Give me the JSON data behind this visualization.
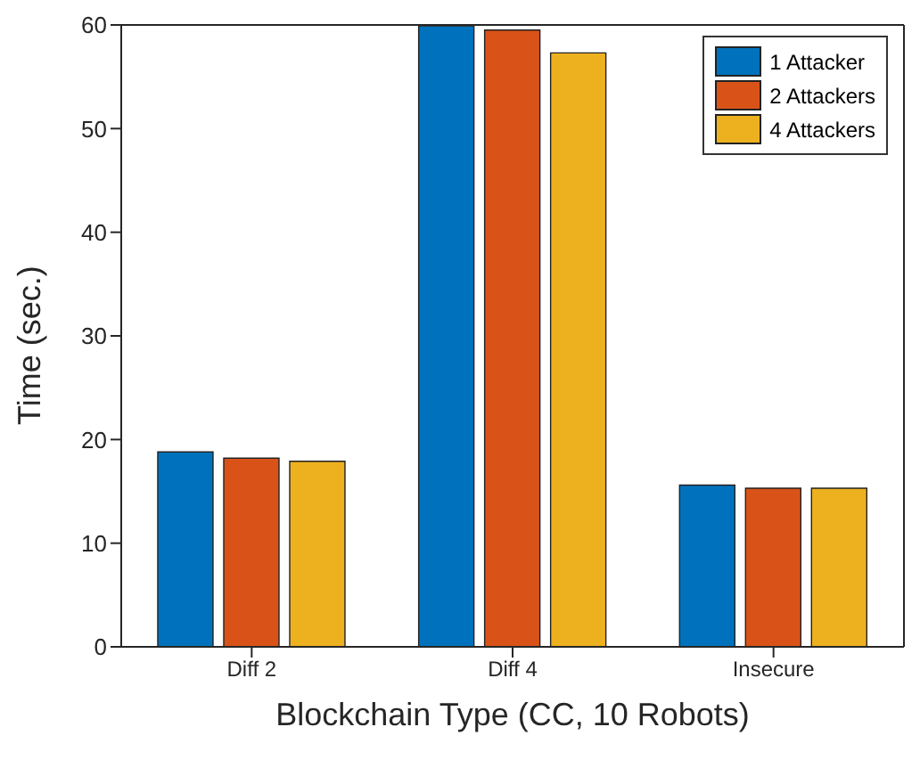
{
  "chart_data": {
    "type": "bar",
    "xlabel": "Blockchain Type (CC, 10 Robots)",
    "ylabel": "Time (sec.)",
    "categories": [
      "Diff 2",
      "Diff 4",
      "Insecure"
    ],
    "series": [
      {
        "name": "1 Attacker",
        "color": "#0072bd",
        "values": [
          18.8,
          59.9,
          15.6
        ]
      },
      {
        "name": "2 Attackers",
        "color": "#d95319",
        "values": [
          18.2,
          59.5,
          15.3
        ]
      },
      {
        "name": "4 Attackers",
        "color": "#edb120",
        "values": [
          17.9,
          57.3,
          15.3
        ]
      }
    ],
    "ylim": [
      0,
      60
    ],
    "yticks": [
      0,
      10,
      20,
      30,
      40,
      50,
      60
    ],
    "legend": "top right"
  }
}
